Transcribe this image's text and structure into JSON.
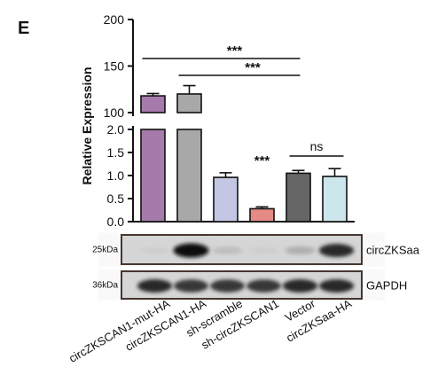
{
  "panel_label": "E",
  "chart_data": {
    "type": "bar",
    "ylabel": "Relative Expression",
    "categories": [
      "circZKSCAN1-mut-HA",
      "circZKSCAN1-HA",
      "sh-scramble",
      "sh-circZKSCAN1",
      "Vector",
      "circZKSaa-HA"
    ],
    "values": [
      118,
      120,
      0.96,
      0.28,
      1.05,
      0.98
    ],
    "errors": [
      2.5,
      9,
      0.1,
      0.04,
      0.06,
      0.17
    ],
    "bar_colors": [
      "#a67bab",
      "#a8a8a8",
      "#c3c7e3",
      "#e58a85",
      "#666666",
      "#cde6ec"
    ],
    "y_upper_ticks": [
      "100",
      "150",
      "200"
    ],
    "y_lower_ticks": [
      "0.0",
      "0.5",
      "1.0",
      "1.5",
      "2.0"
    ],
    "y_upper_range": [
      100,
      200
    ],
    "y_lower_range": [
      0,
      2
    ],
    "annotations": [
      {
        "text": "***",
        "from": 0,
        "to": 4
      },
      {
        "text": "***",
        "from": 1,
        "to": 4
      },
      {
        "text": "***",
        "on": 3
      },
      {
        "text": "ns",
        "from": 4,
        "to": 5
      }
    ]
  },
  "blots": [
    {
      "size": "25kDa",
      "name": "circZKSaa",
      "intensities": [
        0.05,
        1.0,
        0.2,
        0.05,
        0.3,
        0.9
      ]
    },
    {
      "size": "36kDa",
      "name": "GAPDH",
      "intensities": [
        0.9,
        0.85,
        0.85,
        0.85,
        0.9,
        0.9
      ]
    }
  ]
}
